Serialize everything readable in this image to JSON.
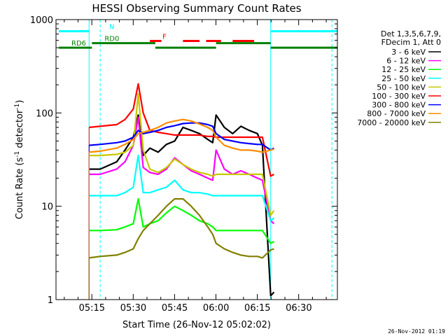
{
  "chart_data": {
    "type": "line",
    "title": "HESSI Observing Summary Count Rates",
    "xlabel": "Start Time (26-Nov-12 05:02:02)",
    "ylabel_main": "Count Rate (s",
    "ylabel_sup1": "-1",
    "ylabel_mid": " detector",
    "ylabel_sup2": "-1",
    "ylabel_end": ")",
    "yscale": "log",
    "ylim": [
      1,
      1000
    ],
    "xlim": [
      5.033,
      6.733
    ],
    "x_unit": "hours UT",
    "xticks": [
      {
        "x": 5.25,
        "label": "05:15"
      },
      {
        "x": 5.5,
        "label": "05:30"
      },
      {
        "x": 5.75,
        "label": "05:45"
      },
      {
        "x": 6.0,
        "label": "06:00"
      },
      {
        "x": 6.25,
        "label": "06:15"
      },
      {
        "x": 6.5,
        "label": "06:30"
      }
    ],
    "yticks": [
      {
        "y": 1,
        "label": "1"
      },
      {
        "y": 10,
        "label": "10"
      },
      {
        "y": 100,
        "label": "100"
      },
      {
        "y": 1000,
        "label": "1000"
      }
    ],
    "legend_header": [
      "Det 1,3,5,6,7,9,",
      "FDecim 1, Att 0"
    ],
    "legend_placement": "right",
    "series": [
      {
        "name": "3 - 6 keV",
        "color": "#000000",
        "x": [
          5.233,
          5.3,
          5.4,
          5.45,
          5.5,
          5.53,
          5.56,
          5.6,
          5.65,
          5.7,
          5.75,
          5.8,
          5.85,
          5.9,
          5.95,
          5.98,
          6.0,
          6.05,
          6.1,
          6.15,
          6.2,
          6.25,
          6.28,
          6.33,
          6.35
        ],
        "y": [
          25,
          25,
          30,
          40,
          55,
          95,
          35,
          42,
          38,
          46,
          50,
          70,
          65,
          60,
          52,
          48,
          95,
          70,
          60,
          72,
          65,
          60,
          45,
          1.1,
          1.2
        ]
      },
      {
        "name": "6 - 12 keV",
        "color": "#ff00ff",
        "x": [
          5.233,
          5.3,
          5.4,
          5.45,
          5.5,
          5.53,
          5.56,
          5.6,
          5.65,
          5.7,
          5.75,
          5.8,
          5.85,
          5.9,
          5.95,
          5.98,
          6.0,
          6.05,
          6.1,
          6.15,
          6.2,
          6.25,
          6.28,
          6.33,
          6.35
        ],
        "y": [
          22,
          22,
          25,
          30,
          45,
          90,
          26,
          23,
          22,
          25,
          33,
          28,
          24,
          22,
          20,
          19,
          40,
          25,
          22,
          24,
          22,
          20,
          19,
          7,
          6.5
        ]
      },
      {
        "name": "12 - 25 keV",
        "color": "#00ff00",
        "x": [
          5.233,
          5.3,
          5.4,
          5.45,
          5.5,
          5.53,
          5.56,
          5.6,
          5.65,
          5.7,
          5.75,
          5.8,
          5.85,
          5.9,
          5.95,
          5.98,
          6.0,
          6.05,
          6.1,
          6.15,
          6.2,
          6.25,
          6.28,
          6.33,
          6.35
        ],
        "y": [
          5.5,
          5.5,
          5.6,
          6,
          6.5,
          12,
          6,
          6.5,
          7,
          8.5,
          10,
          9,
          8,
          7,
          6.5,
          6,
          5.5,
          5.5,
          5.5,
          5.5,
          5.5,
          5.5,
          5.5,
          4,
          4.2
        ]
      },
      {
        "name": "25 - 50 keV",
        "color": "#00ffff",
        "x": [
          5.233,
          5.3,
          5.4,
          5.45,
          5.5,
          5.53,
          5.56,
          5.6,
          5.65,
          5.7,
          5.75,
          5.8,
          5.85,
          5.9,
          5.95,
          5.98,
          6.0,
          6.05,
          6.1,
          6.15,
          6.2,
          6.25,
          6.28,
          6.33,
          6.35
        ],
        "y": [
          13,
          13,
          13,
          14,
          16,
          35,
          14,
          14,
          15,
          16,
          19,
          15,
          14,
          14,
          13.5,
          13,
          13,
          13,
          13,
          13,
          13,
          13,
          13,
          7,
          7.5
        ]
      },
      {
        "name": "50 - 100 keV",
        "color": "#c8c800",
        "x": [
          5.233,
          5.3,
          5.4,
          5.45,
          5.5,
          5.53,
          5.56,
          5.6,
          5.65,
          5.7,
          5.75,
          5.8,
          5.85,
          5.9,
          5.95,
          5.98,
          6.0,
          6.05,
          6.1,
          6.15,
          6.2,
          6.25,
          6.28,
          6.33,
          6.35
        ],
        "y": [
          35,
          35,
          36,
          38,
          45,
          160,
          40,
          25,
          23,
          26,
          32,
          28,
          25,
          23,
          22,
          21,
          22,
          22,
          22,
          22,
          22,
          22,
          22,
          8,
          9
        ]
      },
      {
        "name": "100 - 300 keV",
        "color": "#ff0000",
        "x": [
          5.233,
          5.3,
          5.4,
          5.45,
          5.5,
          5.53,
          5.56,
          5.6,
          5.65,
          5.7,
          5.75,
          5.8,
          5.85,
          5.9,
          5.95,
          5.98,
          6.0,
          6.05,
          6.1,
          6.15,
          6.2,
          6.25,
          6.28,
          6.33,
          6.35
        ],
        "y": [
          70,
          72,
          75,
          85,
          110,
          205,
          100,
          65,
          62,
          60,
          58,
          58,
          58,
          58,
          56,
          56,
          55,
          55,
          55,
          55,
          55,
          55,
          55,
          21,
          22
        ]
      },
      {
        "name": "300 - 800 keV",
        "color": "#0000ff",
        "x": [
          5.233,
          5.3,
          5.4,
          5.45,
          5.5,
          5.53,
          5.56,
          5.6,
          5.65,
          5.7,
          5.75,
          5.8,
          5.85,
          5.9,
          5.95,
          5.98,
          6.0,
          6.05,
          6.1,
          6.15,
          6.2,
          6.25,
          6.28,
          6.33,
          6.35
        ],
        "y": [
          45,
          46,
          48,
          50,
          55,
          65,
          60,
          62,
          65,
          70,
          73,
          77,
          78,
          78,
          75,
          72,
          60,
          52,
          50,
          48,
          47,
          46,
          46,
          40,
          42
        ]
      },
      {
        "name": "800 - 7000 keV",
        "color": "#ff8c00",
        "x": [
          5.233,
          5.3,
          5.4,
          5.45,
          5.5,
          5.53,
          5.56,
          5.6,
          5.65,
          5.7,
          5.75,
          5.8,
          5.85,
          5.9,
          5.95,
          5.98,
          6.0,
          6.05,
          6.1,
          6.15,
          6.2,
          6.25,
          6.28,
          6.33,
          6.35
        ],
        "y": [
          38,
          39,
          42,
          46,
          52,
          60,
          62,
          65,
          70,
          78,
          82,
          85,
          82,
          76,
          70,
          65,
          55,
          45,
          42,
          40,
          40,
          39,
          38,
          40,
          41
        ]
      },
      {
        "name": "7000 - 20000 keV",
        "color": "#808000",
        "x": [
          5.233,
          5.3,
          5.4,
          5.45,
          5.5,
          5.53,
          5.56,
          5.6,
          5.65,
          5.7,
          5.75,
          5.8,
          5.85,
          5.9,
          5.95,
          5.98,
          6.0,
          6.05,
          6.1,
          6.15,
          6.2,
          6.25,
          6.28,
          6.33,
          6.35
        ],
        "y": [
          2.8,
          2.9,
          3.0,
          3.2,
          3.5,
          4.5,
          5.5,
          6.5,
          8,
          10,
          12,
          12,
          10,
          8,
          6,
          5,
          4,
          3.5,
          3.2,
          3.0,
          2.9,
          2.9,
          2.8,
          3.4,
          3.5
        ]
      }
    ],
    "status_bars": [
      {
        "label": "N",
        "color": "#00ffff",
        "y": 750,
        "segments": [
          [
            5.05,
            5.233
          ],
          [
            6.33,
            6.733
          ]
        ]
      },
      {
        "label": "F",
        "color": "#ff0000",
        "y": 590,
        "segments": [
          [
            5.6,
            5.67
          ],
          [
            5.8,
            5.9
          ],
          [
            5.94,
            6.03
          ],
          [
            6.1,
            6.23
          ]
        ]
      },
      {
        "label": "RD0",
        "color": "#008000",
        "y": 560,
        "segments": [
          [
            5.25,
            5.633
          ],
          [
            6.0,
            6.33
          ]
        ]
      },
      {
        "label": "RD6",
        "color": "#008000",
        "y": 500,
        "segments": [
          [
            5.05,
            5.25
          ],
          [
            5.633,
            6.0
          ],
          [
            6.33,
            6.733
          ]
        ]
      }
    ],
    "vertical_markers": [
      {
        "x": 5.233,
        "style": "solid",
        "color": "#00ffff"
      },
      {
        "x": 5.3,
        "style": "dashed",
        "color": "#00ffff"
      },
      {
        "x": 6.33,
        "style": "solid",
        "color": "#00ffff"
      },
      {
        "x": 6.7,
        "style": "dashed",
        "color": "#00ffff"
      }
    ],
    "footer_date": "26-Nov-2012 01:19"
  }
}
